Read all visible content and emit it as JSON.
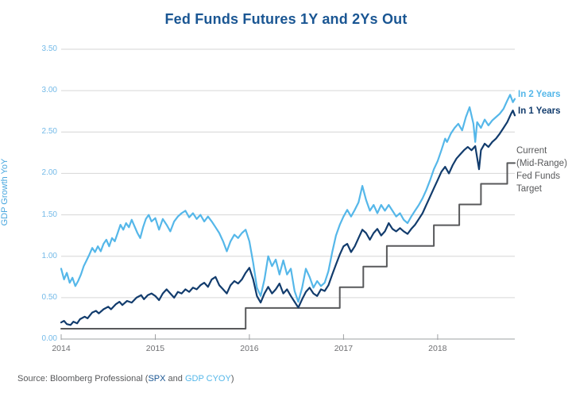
{
  "colors": {
    "title_blue": "#1A5693",
    "light_blue": "#55B7E9",
    "navy": "#123C6D",
    "gray_text": "#58595B",
    "grid": "#D6D6D6",
    "axis": "#9EA0A3",
    "ytick_label": "#74BAE8",
    "xtick_label": "#6D6E71",
    "axis_title": "#4BA8DF"
  },
  "source": {
    "part1": "Source: Bloomberg Professional (",
    "part2": "SPX",
    "part3": " and ",
    "part4": "GDP CYOY",
    "part5": ")"
  },
  "chart_data": {
    "type": "line",
    "title": "Fed Funds Futures 1Y and 2Ys Out",
    "xlabel": "",
    "ylabel": "GDP Growth YoY",
    "xlim": [
      2014,
      2018.82
    ],
    "ylim": [
      0,
      3.5
    ],
    "grid": true,
    "legend_position": "right",
    "xticks": [
      {
        "v": 2014,
        "label": "2014"
      },
      {
        "v": 2015,
        "label": "2015"
      },
      {
        "v": 2016,
        "label": "2016"
      },
      {
        "v": 2017,
        "label": "2017"
      },
      {
        "v": 2018,
        "label": "2018"
      }
    ],
    "yticks": [
      {
        "v": 0.0,
        "label": "0.00"
      },
      {
        "v": 0.5,
        "label": "0.50"
      },
      {
        "v": 1.0,
        "label": "1.00"
      },
      {
        "v": 1.5,
        "label": "1.50"
      },
      {
        "v": 2.0,
        "label": "2.00"
      },
      {
        "v": 2.5,
        "label": "2.50"
      },
      {
        "v": 3.0,
        "label": "3.00"
      },
      {
        "v": 3.5,
        "label": "3.50"
      }
    ],
    "series": [
      {
        "id": "fed-funds-target",
        "name": "Current (Mid-Range) Fed Funds Target",
        "label": "Current\n(Mid-Range)\nFed Funds\nTarget",
        "color": "#58595B",
        "points": [
          [
            2014.0,
            0.125
          ],
          [
            2015.96,
            0.125
          ],
          [
            2015.96,
            0.375
          ],
          [
            2016.96,
            0.375
          ],
          [
            2016.96,
            0.625
          ],
          [
            2017.21,
            0.625
          ],
          [
            2017.21,
            0.875
          ],
          [
            2017.46,
            0.875
          ],
          [
            2017.46,
            1.125
          ],
          [
            2017.96,
            1.125
          ],
          [
            2017.96,
            1.375
          ],
          [
            2018.23,
            1.375
          ],
          [
            2018.23,
            1.625
          ],
          [
            2018.46,
            1.625
          ],
          [
            2018.46,
            1.875
          ],
          [
            2018.74,
            1.875
          ],
          [
            2018.74,
            2.125
          ],
          [
            2018.82,
            2.125
          ]
        ]
      },
      {
        "id": "in-2-years",
        "name": "In 2 Years",
        "label": "In 2 Years",
        "color": "#55B7E9",
        "points": [
          [
            2014.0,
            0.85
          ],
          [
            2014.03,
            0.72
          ],
          [
            2014.06,
            0.8
          ],
          [
            2014.09,
            0.68
          ],
          [
            2014.12,
            0.74
          ],
          [
            2014.15,
            0.64
          ],
          [
            2014.18,
            0.7
          ],
          [
            2014.21,
            0.78
          ],
          [
            2014.24,
            0.88
          ],
          [
            2014.27,
            0.95
          ],
          [
            2014.3,
            1.02
          ],
          [
            2014.33,
            1.1
          ],
          [
            2014.36,
            1.05
          ],
          [
            2014.39,
            1.12
          ],
          [
            2014.42,
            1.06
          ],
          [
            2014.45,
            1.15
          ],
          [
            2014.48,
            1.2
          ],
          [
            2014.51,
            1.12
          ],
          [
            2014.54,
            1.22
          ],
          [
            2014.57,
            1.18
          ],
          [
            2014.6,
            1.28
          ],
          [
            2014.63,
            1.38
          ],
          [
            2014.66,
            1.32
          ],
          [
            2014.69,
            1.4
          ],
          [
            2014.72,
            1.35
          ],
          [
            2014.75,
            1.44
          ],
          [
            2014.78,
            1.36
          ],
          [
            2014.81,
            1.28
          ],
          [
            2014.84,
            1.22
          ],
          [
            2014.87,
            1.35
          ],
          [
            2014.9,
            1.45
          ],
          [
            2014.93,
            1.5
          ],
          [
            2014.96,
            1.42
          ],
          [
            2015.0,
            1.46
          ],
          [
            2015.04,
            1.32
          ],
          [
            2015.08,
            1.45
          ],
          [
            2015.12,
            1.38
          ],
          [
            2015.16,
            1.3
          ],
          [
            2015.2,
            1.42
          ],
          [
            2015.24,
            1.48
          ],
          [
            2015.28,
            1.52
          ],
          [
            2015.32,
            1.55
          ],
          [
            2015.36,
            1.47
          ],
          [
            2015.4,
            1.52
          ],
          [
            2015.44,
            1.45
          ],
          [
            2015.48,
            1.5
          ],
          [
            2015.52,
            1.42
          ],
          [
            2015.56,
            1.48
          ],
          [
            2015.6,
            1.42
          ],
          [
            2015.64,
            1.35
          ],
          [
            2015.68,
            1.28
          ],
          [
            2015.72,
            1.18
          ],
          [
            2015.76,
            1.06
          ],
          [
            2015.8,
            1.18
          ],
          [
            2015.84,
            1.26
          ],
          [
            2015.88,
            1.22
          ],
          [
            2015.92,
            1.28
          ],
          [
            2015.96,
            1.32
          ],
          [
            2016.0,
            1.18
          ],
          [
            2016.04,
            0.92
          ],
          [
            2016.08,
            0.62
          ],
          [
            2016.12,
            0.52
          ],
          [
            2016.16,
            0.72
          ],
          [
            2016.2,
            1.0
          ],
          [
            2016.24,
            0.88
          ],
          [
            2016.28,
            0.96
          ],
          [
            2016.32,
            0.78
          ],
          [
            2016.36,
            0.95
          ],
          [
            2016.4,
            0.78
          ],
          [
            2016.44,
            0.85
          ],
          [
            2016.48,
            0.58
          ],
          [
            2016.52,
            0.45
          ],
          [
            2016.56,
            0.62
          ],
          [
            2016.6,
            0.85
          ],
          [
            2016.64,
            0.75
          ],
          [
            2016.68,
            0.62
          ],
          [
            2016.72,
            0.7
          ],
          [
            2016.76,
            0.64
          ],
          [
            2016.8,
            0.68
          ],
          [
            2016.84,
            0.82
          ],
          [
            2016.88,
            1.05
          ],
          [
            2016.92,
            1.25
          ],
          [
            2016.96,
            1.38
          ],
          [
            2017.0,
            1.48
          ],
          [
            2017.04,
            1.56
          ],
          [
            2017.08,
            1.48
          ],
          [
            2017.12,
            1.56
          ],
          [
            2017.16,
            1.65
          ],
          [
            2017.2,
            1.85
          ],
          [
            2017.24,
            1.68
          ],
          [
            2017.28,
            1.55
          ],
          [
            2017.32,
            1.62
          ],
          [
            2017.36,
            1.52
          ],
          [
            2017.4,
            1.62
          ],
          [
            2017.44,
            1.55
          ],
          [
            2017.48,
            1.62
          ],
          [
            2017.52,
            1.55
          ],
          [
            2017.56,
            1.48
          ],
          [
            2017.6,
            1.52
          ],
          [
            2017.64,
            1.44
          ],
          [
            2017.68,
            1.4
          ],
          [
            2017.72,
            1.48
          ],
          [
            2017.76,
            1.55
          ],
          [
            2017.8,
            1.62
          ],
          [
            2017.84,
            1.7
          ],
          [
            2017.88,
            1.8
          ],
          [
            2017.92,
            1.92
          ],
          [
            2017.96,
            2.05
          ],
          [
            2018.0,
            2.15
          ],
          [
            2018.04,
            2.28
          ],
          [
            2018.08,
            2.42
          ],
          [
            2018.1,
            2.38
          ],
          [
            2018.14,
            2.48
          ],
          [
            2018.18,
            2.55
          ],
          [
            2018.22,
            2.6
          ],
          [
            2018.26,
            2.52
          ],
          [
            2018.3,
            2.68
          ],
          [
            2018.34,
            2.8
          ],
          [
            2018.38,
            2.6
          ],
          [
            2018.4,
            2.38
          ],
          [
            2018.42,
            2.62
          ],
          [
            2018.46,
            2.55
          ],
          [
            2018.5,
            2.65
          ],
          [
            2018.54,
            2.58
          ],
          [
            2018.58,
            2.64
          ],
          [
            2018.62,
            2.68
          ],
          [
            2018.66,
            2.72
          ],
          [
            2018.7,
            2.78
          ],
          [
            2018.74,
            2.88
          ],
          [
            2018.77,
            2.95
          ],
          [
            2018.8,
            2.86
          ],
          [
            2018.82,
            2.9
          ]
        ]
      },
      {
        "id": "in-1-years",
        "name": "In 1 Years",
        "label": "In 1 Years",
        "color": "#123C6D",
        "points": [
          [
            2014.0,
            0.2
          ],
          [
            2014.03,
            0.22
          ],
          [
            2014.06,
            0.18
          ],
          [
            2014.1,
            0.17
          ],
          [
            2014.13,
            0.21
          ],
          [
            2014.17,
            0.19
          ],
          [
            2014.2,
            0.24
          ],
          [
            2014.25,
            0.27
          ],
          [
            2014.28,
            0.25
          ],
          [
            2014.33,
            0.32
          ],
          [
            2014.37,
            0.34
          ],
          [
            2014.4,
            0.31
          ],
          [
            2014.45,
            0.36
          ],
          [
            2014.5,
            0.39
          ],
          [
            2014.53,
            0.36
          ],
          [
            2014.58,
            0.42
          ],
          [
            2014.62,
            0.45
          ],
          [
            2014.65,
            0.41
          ],
          [
            2014.7,
            0.46
          ],
          [
            2014.75,
            0.44
          ],
          [
            2014.8,
            0.5
          ],
          [
            2014.85,
            0.53
          ],
          [
            2014.88,
            0.48
          ],
          [
            2014.92,
            0.53
          ],
          [
            2014.96,
            0.55
          ],
          [
            2015.0,
            0.52
          ],
          [
            2015.04,
            0.47
          ],
          [
            2015.08,
            0.55
          ],
          [
            2015.12,
            0.6
          ],
          [
            2015.16,
            0.55
          ],
          [
            2015.2,
            0.5
          ],
          [
            2015.24,
            0.57
          ],
          [
            2015.28,
            0.55
          ],
          [
            2015.32,
            0.6
          ],
          [
            2015.36,
            0.57
          ],
          [
            2015.4,
            0.62
          ],
          [
            2015.44,
            0.6
          ],
          [
            2015.48,
            0.65
          ],
          [
            2015.52,
            0.68
          ],
          [
            2015.56,
            0.63
          ],
          [
            2015.6,
            0.72
          ],
          [
            2015.64,
            0.75
          ],
          [
            2015.68,
            0.65
          ],
          [
            2015.72,
            0.6
          ],
          [
            2015.76,
            0.55
          ],
          [
            2015.8,
            0.65
          ],
          [
            2015.84,
            0.7
          ],
          [
            2015.88,
            0.67
          ],
          [
            2015.92,
            0.72
          ],
          [
            2015.96,
            0.8
          ],
          [
            2016.0,
            0.86
          ],
          [
            2016.04,
            0.72
          ],
          [
            2016.08,
            0.52
          ],
          [
            2016.12,
            0.44
          ],
          [
            2016.16,
            0.55
          ],
          [
            2016.2,
            0.63
          ],
          [
            2016.24,
            0.55
          ],
          [
            2016.28,
            0.6
          ],
          [
            2016.32,
            0.67
          ],
          [
            2016.36,
            0.55
          ],
          [
            2016.4,
            0.6
          ],
          [
            2016.44,
            0.52
          ],
          [
            2016.48,
            0.45
          ],
          [
            2016.52,
            0.38
          ],
          [
            2016.56,
            0.48
          ],
          [
            2016.6,
            0.57
          ],
          [
            2016.64,
            0.62
          ],
          [
            2016.68,
            0.55
          ],
          [
            2016.72,
            0.52
          ],
          [
            2016.76,
            0.6
          ],
          [
            2016.8,
            0.58
          ],
          [
            2016.84,
            0.65
          ],
          [
            2016.88,
            0.78
          ],
          [
            2016.92,
            0.9
          ],
          [
            2016.96,
            1.02
          ],
          [
            2017.0,
            1.12
          ],
          [
            2017.04,
            1.15
          ],
          [
            2017.08,
            1.05
          ],
          [
            2017.12,
            1.12
          ],
          [
            2017.16,
            1.22
          ],
          [
            2017.2,
            1.32
          ],
          [
            2017.24,
            1.28
          ],
          [
            2017.28,
            1.2
          ],
          [
            2017.32,
            1.28
          ],
          [
            2017.36,
            1.33
          ],
          [
            2017.4,
            1.25
          ],
          [
            2017.44,
            1.3
          ],
          [
            2017.48,
            1.4
          ],
          [
            2017.52,
            1.33
          ],
          [
            2017.56,
            1.3
          ],
          [
            2017.6,
            1.34
          ],
          [
            2017.64,
            1.3
          ],
          [
            2017.68,
            1.27
          ],
          [
            2017.72,
            1.33
          ],
          [
            2017.76,
            1.38
          ],
          [
            2017.8,
            1.45
          ],
          [
            2017.84,
            1.52
          ],
          [
            2017.88,
            1.62
          ],
          [
            2017.92,
            1.72
          ],
          [
            2017.96,
            1.82
          ],
          [
            2018.0,
            1.92
          ],
          [
            2018.04,
            2.02
          ],
          [
            2018.08,
            2.08
          ],
          [
            2018.12,
            2.0
          ],
          [
            2018.16,
            2.1
          ],
          [
            2018.2,
            2.18
          ],
          [
            2018.24,
            2.23
          ],
          [
            2018.28,
            2.28
          ],
          [
            2018.32,
            2.32
          ],
          [
            2018.36,
            2.28
          ],
          [
            2018.4,
            2.33
          ],
          [
            2018.44,
            2.05
          ],
          [
            2018.46,
            2.28
          ],
          [
            2018.5,
            2.36
          ],
          [
            2018.54,
            2.32
          ],
          [
            2018.58,
            2.38
          ],
          [
            2018.62,
            2.42
          ],
          [
            2018.66,
            2.48
          ],
          [
            2018.7,
            2.55
          ],
          [
            2018.74,
            2.62
          ],
          [
            2018.78,
            2.72
          ],
          [
            2018.8,
            2.76
          ],
          [
            2018.82,
            2.7
          ]
        ]
      }
    ]
  }
}
